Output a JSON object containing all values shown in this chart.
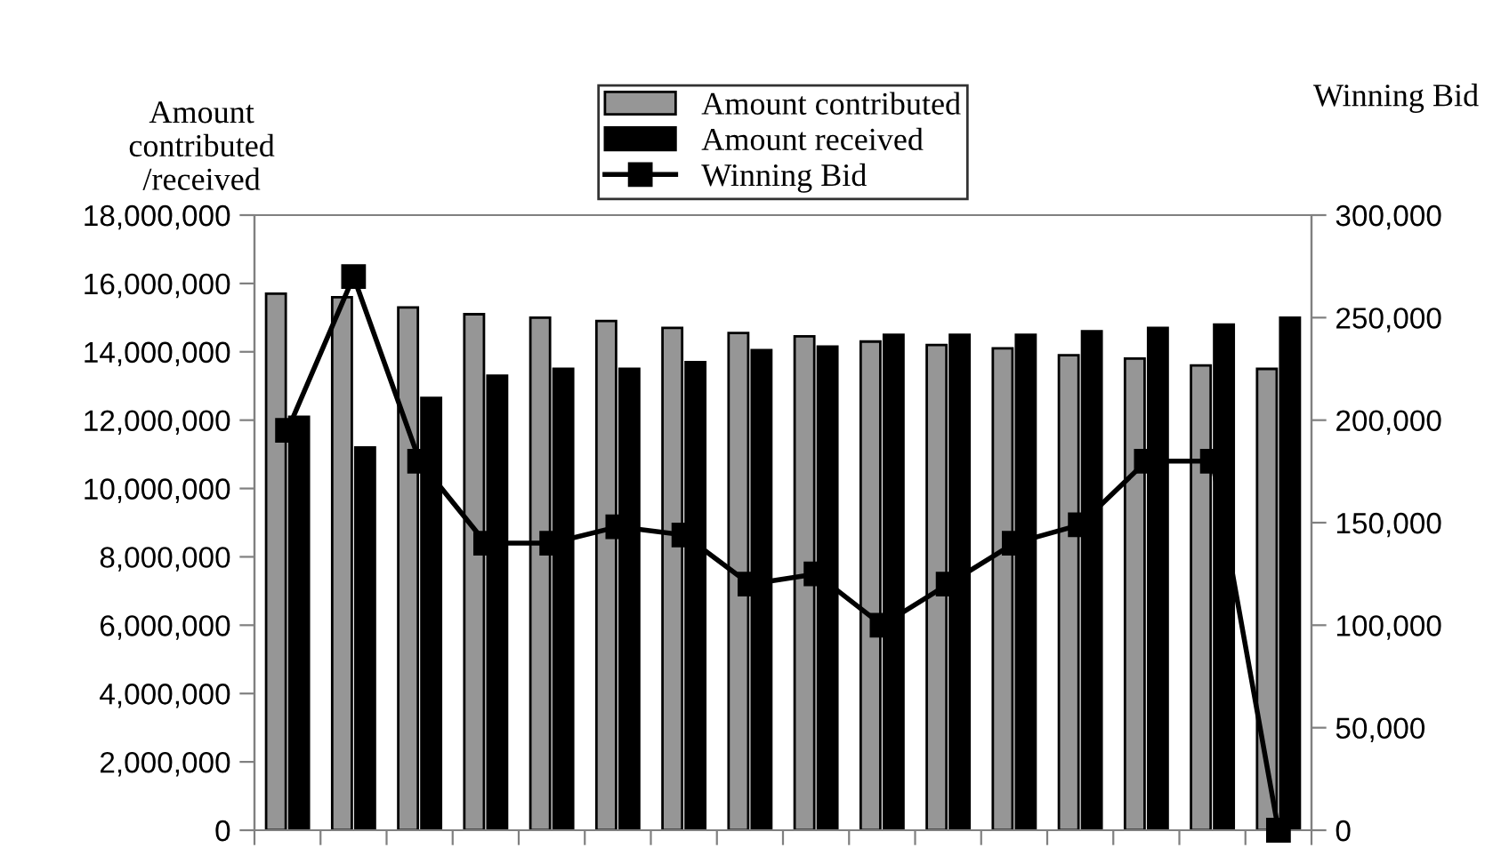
{
  "chart_data": {
    "type": "bar",
    "ylabel": "Amount\ncontributed\n/received",
    "y2label": "Winning Bid",
    "categories": [
      null,
      null,
      null,
      null,
      null,
      null,
      null,
      null,
      null,
      null,
      null,
      null,
      null,
      null,
      null,
      null
    ],
    "series": [
      {
        "name": "Amount contributed",
        "color": "#969696",
        "values": [
          15700000,
          15600000,
          15300000,
          15100000,
          15000000,
          14900000,
          14700000,
          14550000,
          14450000,
          14300000,
          14200000,
          14100000,
          13900000,
          13800000,
          13600000,
          13500000
        ]
      },
      {
        "name": "Amount received",
        "color": "#000000",
        "values": [
          12100000,
          11200000,
          12650000,
          13300000,
          13500000,
          13500000,
          13700000,
          14050000,
          14150000,
          14500000,
          14500000,
          14500000,
          14600000,
          14700000,
          14800000,
          15000000
        ]
      },
      {
        "name": "Winning Bid",
        "type": "line",
        "axis": "y2",
        "color": "#000000",
        "marker": "square",
        "line_style": "solid",
        "values": [
          195000,
          270000,
          180000,
          140000,
          140000,
          148000,
          144000,
          120000,
          125000,
          100000,
          120000,
          140000,
          149000,
          180000,
          180000,
          0
        ]
      }
    ],
    "ylim": [
      0,
      18000000
    ],
    "yticks": [
      {
        "value": 0,
        "label": "0"
      },
      {
        "value": 2000000,
        "label": "2,000,000"
      },
      {
        "value": 4000000,
        "label": "4,000,000"
      },
      {
        "value": 6000000,
        "label": "6,000,000"
      },
      {
        "value": 8000000,
        "label": "8,000,000"
      },
      {
        "value": 10000000,
        "label": "10,000,000"
      },
      {
        "value": 12000000,
        "label": "12,000,000"
      },
      {
        "value": 14000000,
        "label": "14,000,000"
      },
      {
        "value": 16000000,
        "label": "16,000,000"
      },
      {
        "value": 18000000,
        "label": "18,000,000"
      }
    ],
    "y2lim": [
      0,
      300000
    ],
    "y2ticks": [
      {
        "value": 0,
        "label": "0"
      },
      {
        "value": 50000,
        "label": "50,000"
      },
      {
        "value": 100000,
        "label": "100,000"
      },
      {
        "value": 150000,
        "label": "150,000"
      },
      {
        "value": 200000,
        "label": "200,000"
      },
      {
        "value": 250000,
        "label": "250,000"
      },
      {
        "value": 300000,
        "label": "300,000"
      }
    ],
    "legend": "top",
    "grid": false
  }
}
